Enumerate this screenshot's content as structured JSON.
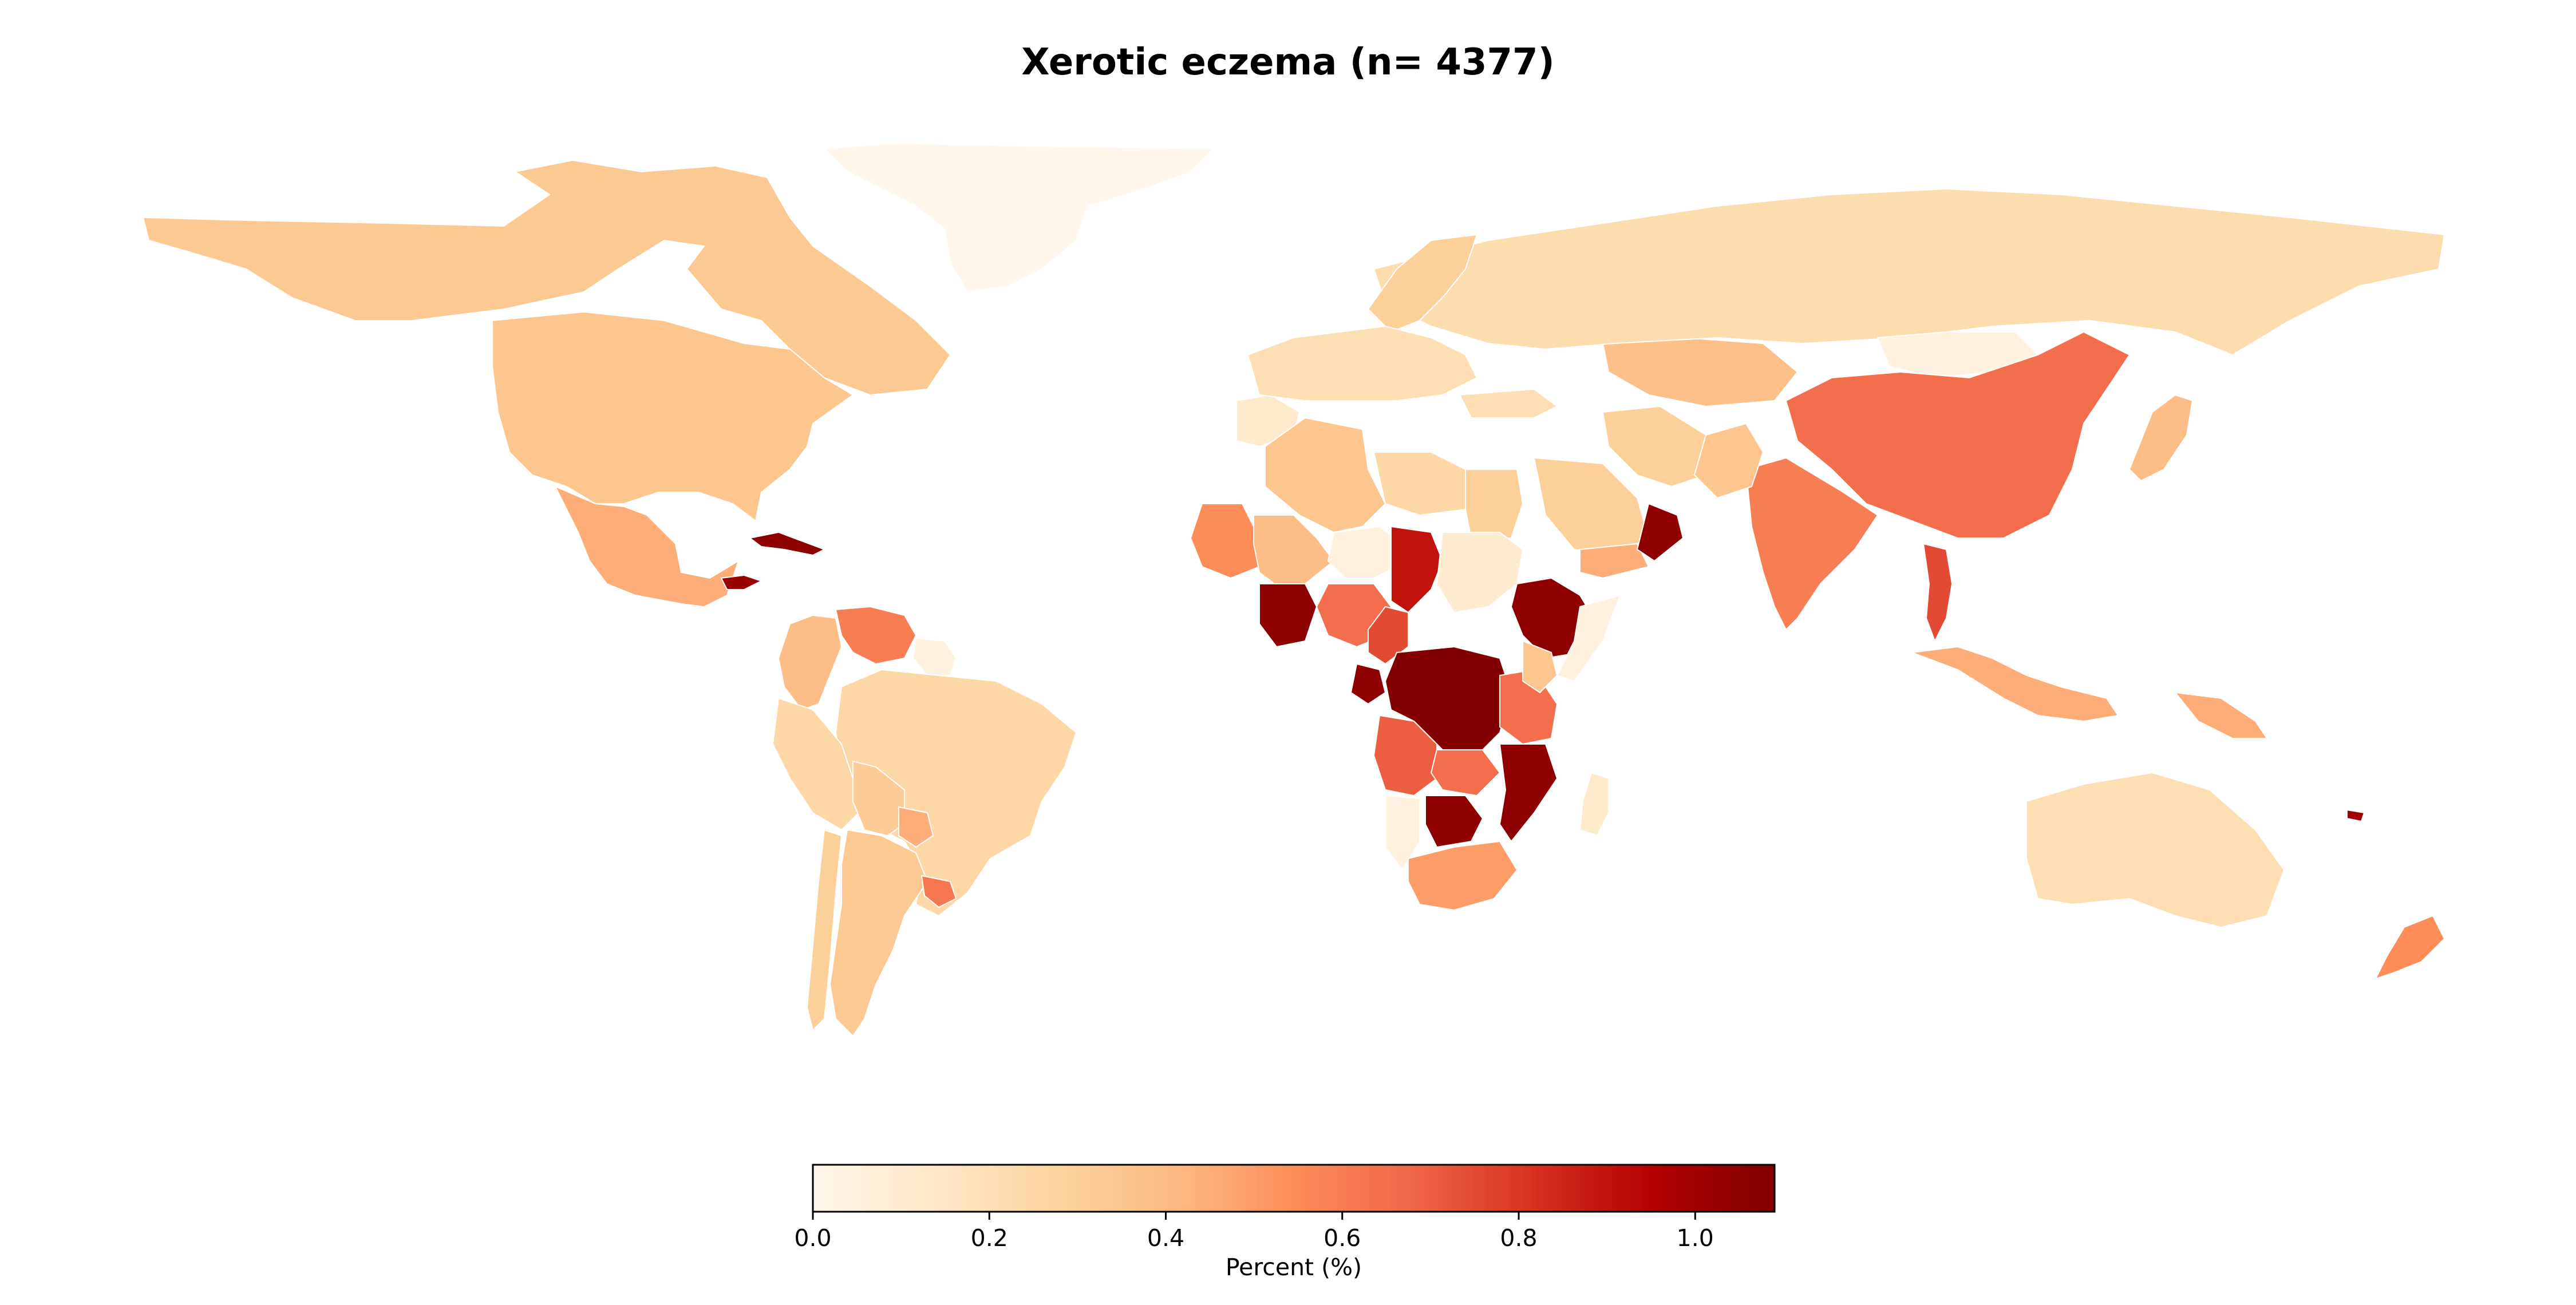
{
  "title": "Xerotic eczema (n= 4377)",
  "colorbar": {
    "label": "Percent (%)",
    "min": 0.0,
    "max": 1.09,
    "ticks": [
      "0.0",
      "0.2",
      "0.4",
      "0.6",
      "0.8",
      "1.0"
    ],
    "colormap": "OrRd"
  },
  "regions": [
    {
      "name": "Greenland",
      "value": 0.0
    },
    {
      "name": "Canada",
      "value": 0.33
    },
    {
      "name": "United States",
      "value": 0.35
    },
    {
      "name": "Mexico",
      "value": 0.45
    },
    {
      "name": "Cuba",
      "value": 1.05
    },
    {
      "name": "Honduras",
      "value": 1.02
    },
    {
      "name": "Colombia",
      "value": 0.4
    },
    {
      "name": "Venezuela",
      "value": 0.6
    },
    {
      "name": "Guyana",
      "value": 0.05
    },
    {
      "name": "Brazil",
      "value": 0.25
    },
    {
      "name": "Peru",
      "value": 0.25
    },
    {
      "name": "Bolivia",
      "value": 0.32
    },
    {
      "name": "Paraguay",
      "value": 0.45
    },
    {
      "name": "Argentina",
      "value": 0.33
    },
    {
      "name": "Chile",
      "value": 0.3
    },
    {
      "name": "Uruguay",
      "value": 0.62
    },
    {
      "name": "Morocco",
      "value": 0.12
    },
    {
      "name": "Algeria",
      "value": 0.35
    },
    {
      "name": "Libya",
      "value": 0.25
    },
    {
      "name": "Egypt",
      "value": 0.3
    },
    {
      "name": "Mauritania",
      "value": 0.55
    },
    {
      "name": "Mali",
      "value": 0.4
    },
    {
      "name": "Niger",
      "value": 0.05
    },
    {
      "name": "Chad",
      "value": 0.9
    },
    {
      "name": "Sudan",
      "value": 0.1
    },
    {
      "name": "Ethiopia",
      "value": 1.05
    },
    {
      "name": "Nigeria",
      "value": 0.65
    },
    {
      "name": "Ghana",
      "value": 1.05
    },
    {
      "name": "Cameroon",
      "value": 0.75
    },
    {
      "name": "Gabon",
      "value": 1.05
    },
    {
      "name": "DR Congo",
      "value": 1.08
    },
    {
      "name": "Tanzania",
      "value": 0.65
    },
    {
      "name": "Kenya",
      "value": 0.35
    },
    {
      "name": "Angola",
      "value": 0.7
    },
    {
      "name": "Zambia",
      "value": 0.65
    },
    {
      "name": "Mozambique",
      "value": 1.05
    },
    {
      "name": "Botswana",
      "value": 1.05
    },
    {
      "name": "Namibia",
      "value": 0.05
    },
    {
      "name": "South Africa",
      "value": 0.5
    },
    {
      "name": "Madagascar",
      "value": 0.12
    },
    {
      "name": "Somalia",
      "value": 0.05
    },
    {
      "name": "Saudi Arabia",
      "value": 0.3
    },
    {
      "name": "Yemen",
      "value": 0.45
    },
    {
      "name": "Oman",
      "value": 1.05
    },
    {
      "name": "Iran",
      "value": 0.3
    },
    {
      "name": "Turkey",
      "value": 0.2
    },
    {
      "name": "Kazakhstan",
      "value": 0.38
    },
    {
      "name": "Russia",
      "value": 0.22
    },
    {
      "name": "Mongolia",
      "value": 0.05
    },
    {
      "name": "China",
      "value": 0.65
    },
    {
      "name": "India",
      "value": 0.6
    },
    {
      "name": "Pakistan",
      "value": 0.35
    },
    {
      "name": "Thailand",
      "value": 0.75
    },
    {
      "name": "Indonesia",
      "value": 0.45
    },
    {
      "name": "Papua New Guinea",
      "value": 0.45
    },
    {
      "name": "Japan",
      "value": 0.4
    },
    {
      "name": "Scandinavia",
      "value": 0.3
    },
    {
      "name": "Europe",
      "value": 0.2
    },
    {
      "name": "Australia",
      "value": 0.2
    },
    {
      "name": "New Zealand",
      "value": 0.55
    },
    {
      "name": "Fiji",
      "value": 1.0
    }
  ]
}
